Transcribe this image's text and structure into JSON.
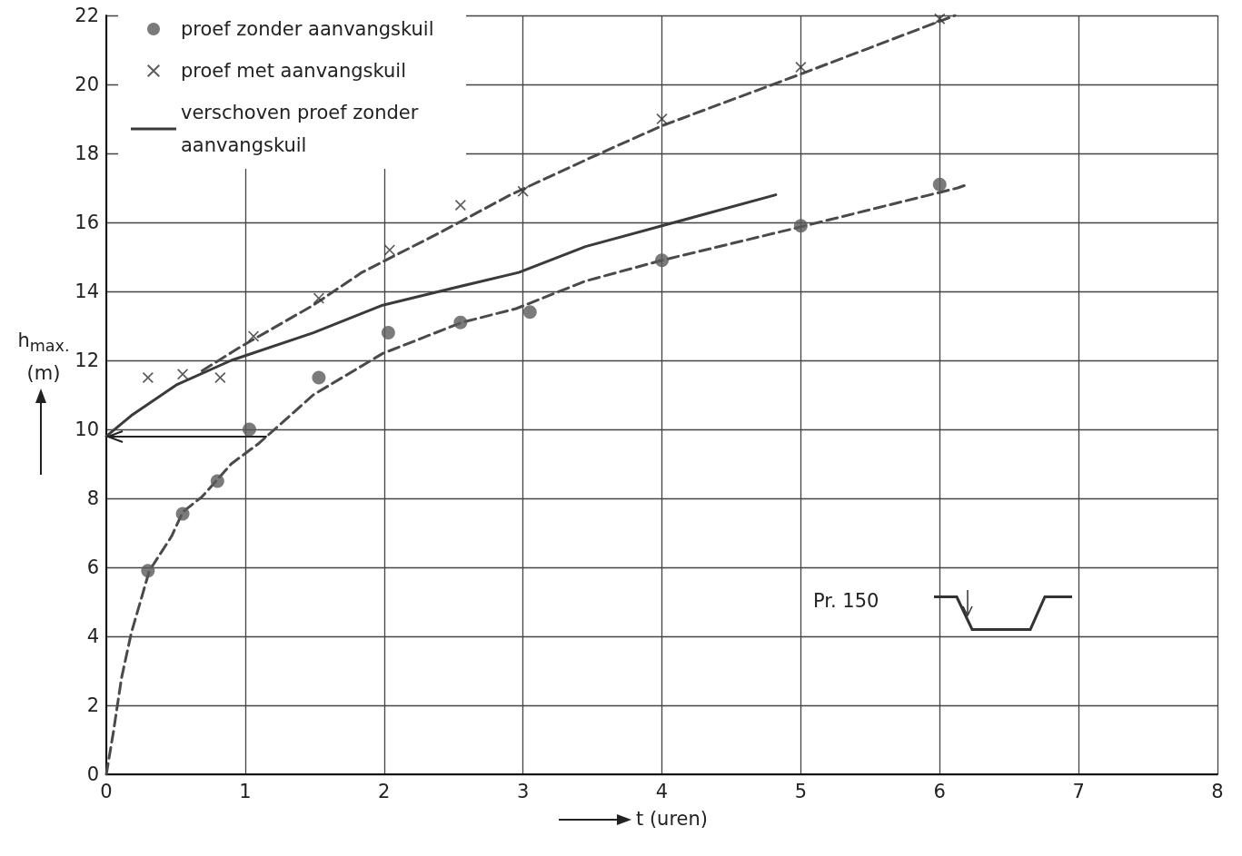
{
  "chart_data": {
    "type": "scatter",
    "xlabel": "t (uren)",
    "ylabel": "h$_{max.}$ (m)",
    "annotations": [
      "Pr. 150"
    ],
    "xlim": [
      0,
      8
    ],
    "xticks": [
      0,
      1,
      2,
      3,
      4,
      5,
      6,
      7,
      8
    ],
    "ylim": [
      0,
      22
    ],
    "yticks": [
      0,
      2,
      4,
      6,
      8,
      10,
      12,
      14,
      16,
      18,
      20,
      22
    ],
    "grid": true,
    "legend": "top left",
    "series": [
      {
        "name": "proef zonder aanvangskuil",
        "marker": "circle",
        "color": "#5a5a5a",
        "x": [
          0.3,
          0.55,
          0.8,
          1.03,
          1.53,
          2.03,
          2.55,
          3.05,
          4.0,
          5.0,
          6.0
        ],
        "values": [
          5.9,
          7.55,
          8.5,
          10.0,
          11.5,
          12.8,
          13.1,
          13.4,
          14.9,
          15.9,
          17.1
        ]
      },
      {
        "name": "proef met aanvangskuil",
        "marker": "cross",
        "color": "#333333",
        "x": [
          0.3,
          0.55,
          0.82,
          1.06,
          1.53,
          2.04,
          2.55,
          3.0,
          4.0,
          5.0,
          6.0
        ],
        "values": [
          11.5,
          11.6,
          11.5,
          12.7,
          13.8,
          15.2,
          16.5,
          16.9,
          19.0,
          20.5,
          21.9
        ]
      },
      {
        "name": "verschoven proef zonder aanvangskuil",
        "type": "line",
        "line_style": "solid",
        "marker": "none",
        "color": "#3a3a3a",
        "x": [
          0,
          0.18,
          0.51,
          0.9,
          1.49,
          1.99,
          2.5,
          2.97,
          3.45,
          4.0,
          4.82
        ],
        "values": [
          9.8,
          10.4,
          11.3,
          12.0,
          12.8,
          13.6,
          14.1,
          14.55,
          15.3,
          15.9,
          16.8
        ]
      },
      {
        "type": "line",
        "line_style": "dashed",
        "marker": "none",
        "color": "#4a4a4a",
        "x": [
          0,
          0.05,
          0.11,
          0.18,
          0.31,
          0.47,
          0.55,
          0.69,
          0.9,
          1.1,
          1.49,
          1.99,
          2.56,
          2.95,
          3.45,
          4.0,
          5.03,
          6.13,
          6.2
        ],
        "values": [
          0,
          1.2,
          2.8,
          4.1,
          5.9,
          6.9,
          7.6,
          8.05,
          9.0,
          9.6,
          11.0,
          12.2,
          13.1,
          13.5,
          14.3,
          14.9,
          15.9,
          17.0,
          17.1
        ]
      },
      {
        "type": "line",
        "line_style": "dashed",
        "marker": "none",
        "color": "#4a4a4a",
        "x": [
          0.69,
          0.97,
          1.49,
          1.84,
          2.4,
          2.91,
          3.5,
          4.0,
          5.0,
          6.11
        ],
        "values": [
          11.7,
          12.4,
          13.6,
          14.55,
          15.7,
          16.8,
          17.9,
          18.8,
          20.3,
          22.0
        ]
      }
    ]
  }
}
